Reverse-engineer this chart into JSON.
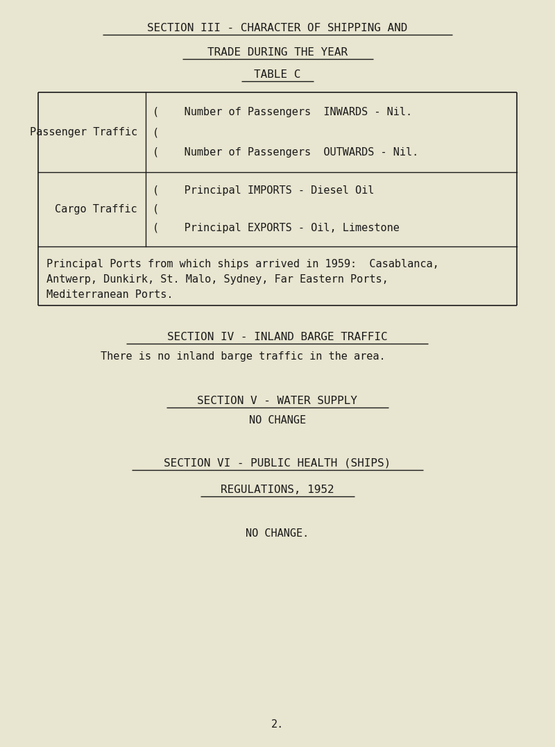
{
  "bg_color": "#e8e5d0",
  "text_color": "#1a1a1a",
  "title1": "SECTION III - CHARACTER OF SHIPPING AND",
  "title2": "TRADE DURING THE YEAR",
  "title3": "TABLE C",
  "table": {
    "row1_label": "Passenger Traffic",
    "row1_line1": "(    Number of Passengers  INWARDS - Nil.",
    "row1_line2": "(",
    "row1_line3": "(    Number of Passengers  OUTWARDS - Nil.",
    "row2_label": "Cargo Traffic",
    "row2_line1": "(    Principal IMPORTS - Diesel Oil",
    "row2_line2": "(",
    "row2_line3": "(    Principal EXPORTS - Oil, Limestone",
    "row3_line1": "Principal Ports from which ships arrived in 1959:  Casablanca,",
    "row3_line2": "Antwerp, Dunkirk, St. Malo, Sydney, Far Eastern Ports,",
    "row3_line3": "Mediterranean Ports."
  },
  "section4_title": "SECTION IV - INLAND BARGE TRAFFIC",
  "section4_text": "There is no inland barge traffic in the area.",
  "section5_title": "SECTION V - WATER SUPPLY",
  "section5_text": "NO CHANGE",
  "section6_title": "SECTION VI - PUBLIC HEALTH (SHIPS)",
  "section6_subtitle": "REGULATIONS, 1952",
  "section6_text": "NO CHANGE.",
  "page_number": "2.",
  "font_size": 11.0,
  "title_font_size": 11.5
}
